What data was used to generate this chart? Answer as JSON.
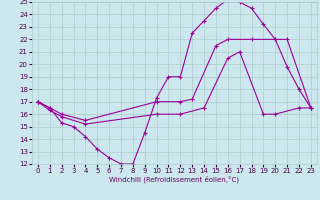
{
  "xlabel": "Windchill (Refroidissement éolien,°C)",
  "bg_color": "#cce8ee",
  "grid_color": "#aacccc",
  "line_color": "#990099",
  "xlim": [
    -0.5,
    23.5
  ],
  "ylim": [
    12,
    25
  ],
  "xticks": [
    0,
    1,
    2,
    3,
    4,
    5,
    6,
    7,
    8,
    9,
    10,
    11,
    12,
    13,
    14,
    15,
    16,
    17,
    18,
    19,
    20,
    21,
    22,
    23
  ],
  "yticks": [
    12,
    13,
    14,
    15,
    16,
    17,
    18,
    19,
    20,
    21,
    22,
    23,
    24,
    25
  ],
  "line1_x": [
    0,
    1,
    2,
    3,
    4,
    5,
    6,
    7,
    8,
    9,
    10,
    11,
    12,
    13,
    14,
    15,
    16,
    17,
    18,
    19,
    20,
    21,
    22,
    23
  ],
  "line1_y": [
    17.0,
    16.5,
    15.3,
    15.0,
    14.2,
    13.2,
    12.5,
    12.0,
    12.0,
    14.5,
    17.3,
    19.0,
    19.0,
    22.5,
    23.5,
    24.5,
    25.2,
    25.0,
    24.5,
    23.2,
    22.0,
    19.8,
    18.0,
    16.5
  ],
  "line2_x": [
    0,
    1,
    2,
    4,
    10,
    12,
    13,
    15,
    16,
    18,
    20,
    21,
    23
  ],
  "line2_y": [
    17.0,
    16.5,
    16.0,
    15.5,
    17.0,
    17.0,
    17.2,
    21.5,
    22.0,
    22.0,
    22.0,
    22.0,
    16.5
  ],
  "line3_x": [
    0,
    1,
    2,
    4,
    10,
    12,
    14,
    16,
    17,
    19,
    20,
    22,
    23
  ],
  "line3_y": [
    17.0,
    16.3,
    15.8,
    15.2,
    16.0,
    16.0,
    16.5,
    20.5,
    21.0,
    16.0,
    16.0,
    16.5,
    16.5
  ]
}
